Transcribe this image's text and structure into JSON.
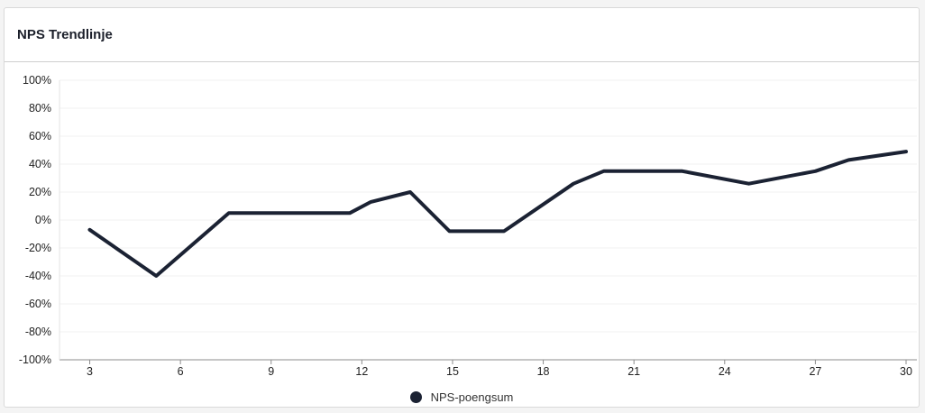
{
  "header": {
    "title": "NPS Trendlinje"
  },
  "colors": {
    "line": "#1b2233",
    "grid": "#f0f0f0",
    "axis": "#8c8c8c"
  },
  "chart_data": {
    "type": "line",
    "title": "NPS Trendlinje",
    "xlabel": "",
    "ylabel": "",
    "xlim": [
      2,
      30
    ],
    "ylim": [
      -100,
      100
    ],
    "x_ticks": [
      3,
      6,
      9,
      12,
      15,
      18,
      21,
      24,
      27,
      30
    ],
    "y_ticks": [
      100,
      80,
      60,
      40,
      20,
      0,
      -20,
      -40,
      -60,
      -80,
      -100
    ],
    "y_tick_labels": [
      "100%",
      "80%",
      "60%",
      "40%",
      "20%",
      "0%",
      "-20%",
      "-40%",
      "-60%",
      "-80%",
      "-100%"
    ],
    "grid": true,
    "legend_position": "bottom",
    "series": [
      {
        "name": "NPS-poengsum",
        "x": [
          3,
          5.2,
          7.6,
          11.6,
          12.3,
          13.6,
          14.9,
          16.7,
          19,
          20,
          22.6,
          24.8,
          27,
          28.1,
          30
        ],
        "y": [
          -7,
          -40,
          5,
          5,
          13,
          20,
          -8,
          -8,
          26,
          35,
          35,
          26,
          35,
          43,
          49
        ]
      }
    ]
  }
}
